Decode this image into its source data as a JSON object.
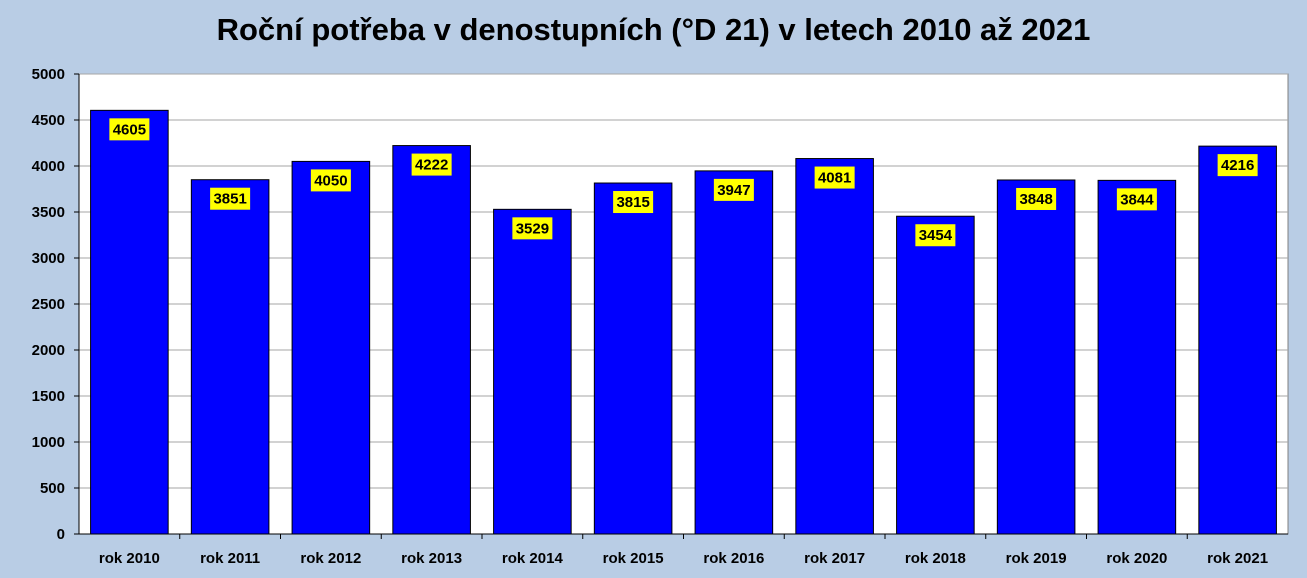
{
  "chart_data": {
    "type": "bar",
    "title": "Roční potřeba v denostupních (°D 21) v letech 2010 až 2021",
    "xlabel": "",
    "ylabel": "",
    "categories": [
      "rok 2010",
      "rok 2011",
      "rok 2012",
      "rok 2013",
      "rok 2014",
      "rok 2015",
      "rok 2016",
      "rok 2017",
      "rok 2018",
      "rok 2019",
      "rok 2020",
      "rok 2021"
    ],
    "values": [
      4605,
      3851,
      4050,
      4222,
      3529,
      3815,
      3947,
      4081,
      3454,
      3848,
      3844,
      4216
    ],
    "ylim": [
      0,
      5000
    ],
    "yticks": [
      0,
      500,
      1000,
      1500,
      2000,
      2500,
      3000,
      3500,
      4000,
      4500,
      5000
    ],
    "grid": true,
    "legend": "none",
    "colors": {
      "bar": "#0000ff",
      "bar_border": "#000000",
      "data_label_bg": "#ffff00",
      "plot_bg": "#ffffff",
      "frame_bg": "#b9cde5",
      "grid": "#a6a6a6"
    }
  }
}
